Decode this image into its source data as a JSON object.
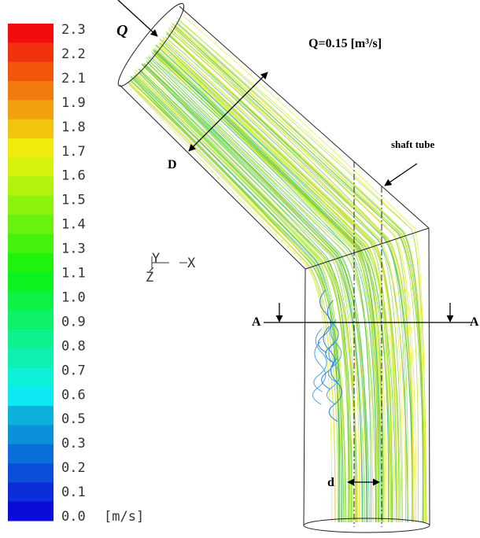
{
  "legend": {
    "labels": [
      "2.3",
      "2.2",
      "2.1",
      "1.9",
      "1.8",
      "1.7",
      "1.6",
      "1.5",
      "1.4",
      "1.3",
      "1.1",
      "1.0",
      "0.9",
      "0.8",
      "0.7",
      "0.6",
      "0.5",
      "0.3",
      "0.2",
      "0.1",
      "0.0"
    ],
    "unit": "[m/s]"
  },
  "annotations": {
    "inlet": "Q",
    "flow": "Q=0.15 [m³/s]",
    "shaft": "shaft tube",
    "diameter": "D",
    "shaft_diameter": "d",
    "section_left": "A",
    "section_right": "A"
  },
  "axes": {
    "y": "Y",
    "x": "X",
    "z": "Z"
  }
}
